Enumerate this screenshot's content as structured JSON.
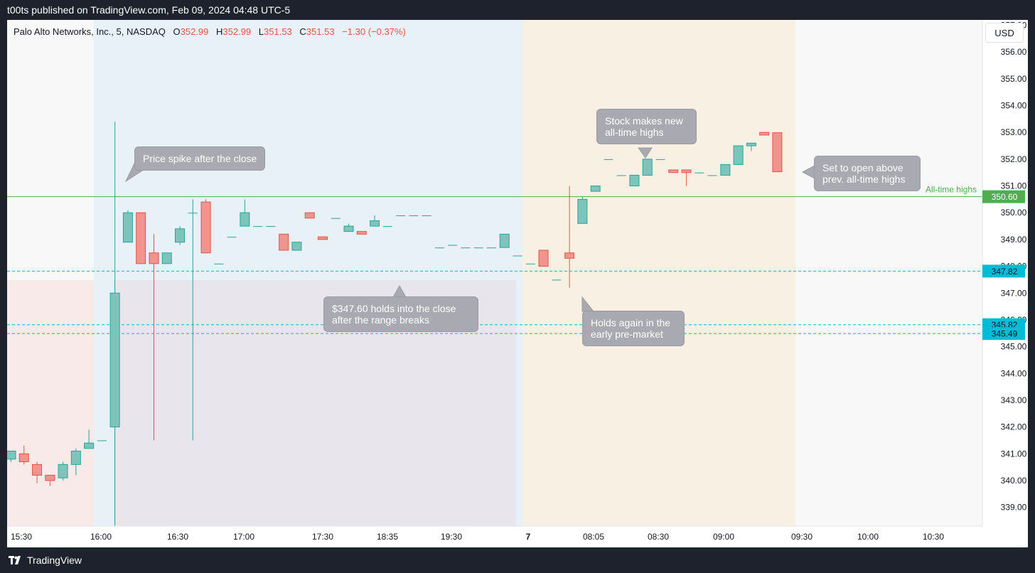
{
  "header": {
    "publisher_line": "t00ts published on TradingView.com, Feb 09, 2024 04:48 UTC-5"
  },
  "footer": {
    "brand": "TradingView"
  },
  "legend": {
    "symbol_line": "Palo Alto Networks, Inc., 5, NASDAQ",
    "o_label": "O",
    "o_value": "352.99",
    "h_label": "H",
    "h_value": "352.99",
    "l_label": "L",
    "l_value": "351.53",
    "c_label": "C",
    "c_value": "351.53",
    "change": "−1.30 (−0.37%)"
  },
  "currency_button": "USD",
  "colors": {
    "up": "#26a69a",
    "up_fill": "#7fc4bb",
    "down": "#e5534b",
    "down_fill": "#f1948f",
    "ath_line": "#4caf50",
    "support_line": "#00bcd4"
  },
  "annotations": [
    {
      "id": "spike",
      "lines": [
        "Price spike after the close"
      ]
    },
    {
      "id": "holds",
      "lines": [
        "$347.60 holds into the close",
        "after the range breaks"
      ]
    },
    {
      "id": "new-high",
      "lines": [
        "Stock makes new",
        "all-time highs"
      ]
    },
    {
      "id": "open-above",
      "lines": [
        "Set to open above",
        "prev. all-time highs"
      ]
    },
    {
      "id": "premarket",
      "lines": [
        "Holds again in the",
        "early pre-market"
      ]
    }
  ],
  "chart_data": {
    "type": "candlestick",
    "title": "Palo Alto Networks, Inc., 5, NASDAQ",
    "ylim": [
      338.3,
      357.2
    ],
    "y_ticks": [
      339,
      340,
      341,
      342,
      343,
      344,
      345,
      346,
      347,
      348,
      349,
      350,
      351,
      352,
      353,
      354,
      355,
      356,
      357
    ],
    "y_tick_labels": [
      "339.00",
      "340.00",
      "341.00",
      "342.00",
      "343.00",
      "344.00",
      "345.00",
      "346.00",
      "347.00",
      "348.00",
      "349.00",
      "350.00",
      "351.00",
      "352.00",
      "353.00",
      "354.00",
      "355.00",
      "356.00",
      "357.00"
    ],
    "x_tick_labels": [
      "15:30",
      "16:00",
      "16:30",
      "17:00",
      "17:30",
      "18:35",
      "19:30",
      "7",
      "08:05",
      "08:30",
      "09:00",
      "09:30",
      "10:00",
      "10:30"
    ],
    "horizontal_lines": [
      {
        "name": "All-time highs",
        "value": 350.6,
        "label": "350.60",
        "style": "solid"
      },
      {
        "value": 347.82,
        "label": "347.82",
        "style": "dashed"
      },
      {
        "value": 345.82,
        "label": "345.82",
        "style": "dashed"
      },
      {
        "value": 345.49,
        "label": "345.49",
        "style": "dashed"
      }
    ],
    "candles": [
      {
        "o": 340.8,
        "h": 341.1,
        "l": 340.7,
        "c": 341.1
      },
      {
        "o": 341.0,
        "h": 341.3,
        "l": 340.6,
        "c": 340.7
      },
      {
        "o": 340.6,
        "h": 340.7,
        "l": 339.9,
        "c": 340.2
      },
      {
        "o": 340.2,
        "h": 340.2,
        "l": 339.8,
        "c": 340.0
      },
      {
        "o": 340.1,
        "h": 340.7,
        "l": 340.0,
        "c": 340.6
      },
      {
        "o": 340.6,
        "h": 341.2,
        "l": 340.2,
        "c": 341.1
      },
      {
        "o": 341.2,
        "h": 341.9,
        "l": 341.2,
        "c": 341.4
      },
      {
        "o": 341.5,
        "h": 341.5,
        "l": 341.5,
        "c": 341.5
      },
      {
        "o": 342.0,
        "h": 353.4,
        "l": 338.2,
        "c": 347.0
      },
      {
        "o": 348.9,
        "h": 350.1,
        "l": 348.9,
        "c": 350.0
      },
      {
        "o": 350.0,
        "h": 350.0,
        "l": 348.1,
        "c": 348.1
      },
      {
        "o": 348.5,
        "h": 349.2,
        "l": 341.5,
        "c": 348.1
      },
      {
        "o": 348.1,
        "h": 348.5,
        "l": 348.1,
        "c": 348.5
      },
      {
        "o": 348.9,
        "h": 349.5,
        "l": 348.8,
        "c": 349.4
      },
      {
        "o": 350.0,
        "h": 350.5,
        "l": 341.5,
        "c": 350.0
      },
      {
        "o": 350.4,
        "h": 350.5,
        "l": 348.5,
        "c": 348.5
      },
      {
        "o": 348.1,
        "h": 348.1,
        "l": 348.1,
        "c": 348.1
      },
      {
        "o": 349.1,
        "h": 349.1,
        "l": 349.1,
        "c": 349.1
      },
      {
        "o": 349.5,
        "h": 350.5,
        "l": 349.5,
        "c": 350.0
      },
      {
        "o": 349.5,
        "h": 349.5,
        "l": 349.5,
        "c": 349.5
      },
      {
        "o": 349.5,
        "h": 349.5,
        "l": 349.5,
        "c": 349.5
      },
      {
        "o": 349.2,
        "h": 349.2,
        "l": 348.6,
        "c": 348.6
      },
      {
        "o": 348.6,
        "h": 348.9,
        "l": 348.6,
        "c": 348.9
      },
      {
        "o": 350.0,
        "h": 350.0,
        "l": 349.8,
        "c": 349.8
      },
      {
        "o": 349.1,
        "h": 349.1,
        "l": 349.0,
        "c": 349.0
      },
      {
        "o": 349.8,
        "h": 349.8,
        "l": 349.8,
        "c": 349.8
      },
      {
        "o": 349.3,
        "h": 349.6,
        "l": 349.3,
        "c": 349.5
      },
      {
        "o": 349.3,
        "h": 349.3,
        "l": 349.2,
        "c": 349.2
      },
      {
        "o": 349.5,
        "h": 349.9,
        "l": 349.5,
        "c": 349.7
      },
      {
        "o": 349.5,
        "h": 349.5,
        "l": 349.5,
        "c": 349.5
      },
      {
        "o": 349.9,
        "h": 349.9,
        "l": 349.9,
        "c": 349.9
      },
      {
        "o": 349.9,
        "h": 349.9,
        "l": 349.9,
        "c": 349.9
      },
      {
        "o": 349.9,
        "h": 349.9,
        "l": 349.9,
        "c": 349.9
      },
      {
        "o": 348.7,
        "h": 348.7,
        "l": 348.7,
        "c": 348.7
      },
      {
        "o": 348.8,
        "h": 348.8,
        "l": 348.8,
        "c": 348.8
      },
      {
        "o": 348.7,
        "h": 348.7,
        "l": 348.7,
        "c": 348.7
      },
      {
        "o": 348.7,
        "h": 348.7,
        "l": 348.7,
        "c": 348.7
      },
      {
        "o": 348.7,
        "h": 348.7,
        "l": 348.7,
        "c": 348.7
      },
      {
        "o": 348.7,
        "h": 349.2,
        "l": 348.7,
        "c": 349.2
      },
      {
        "o": 348.4,
        "h": 348.4,
        "l": 348.4,
        "c": 348.4
      },
      {
        "o": 348.1,
        "h": 348.1,
        "l": 348.1,
        "c": 348.1
      },
      {
        "o": 348.6,
        "h": 348.6,
        "l": 348.0,
        "c": 348.0
      },
      {
        "o": 347.5,
        "h": 347.5,
        "l": 347.5,
        "c": 347.5
      },
      {
        "o": 348.5,
        "h": 351.0,
        "l": 347.2,
        "c": 348.3
      },
      {
        "o": 349.6,
        "h": 350.6,
        "l": 349.6,
        "c": 350.5
      },
      {
        "o": 350.8,
        "h": 351.0,
        "l": 350.8,
        "c": 351.0
      },
      {
        "o": 352.0,
        "h": 352.0,
        "l": 352.0,
        "c": 352.0
      },
      {
        "o": 351.4,
        "h": 351.4,
        "l": 351.4,
        "c": 351.4
      },
      {
        "o": 351.0,
        "h": 351.4,
        "l": 351.0,
        "c": 351.4
      },
      {
        "o": 351.4,
        "h": 352.0,
        "l": 351.4,
        "c": 352.0
      },
      {
        "o": 352.0,
        "h": 352.0,
        "l": 352.0,
        "c": 352.0
      },
      {
        "o": 351.6,
        "h": 351.6,
        "l": 351.5,
        "c": 351.5
      },
      {
        "o": 351.6,
        "h": 351.6,
        "l": 351.0,
        "c": 351.5
      },
      {
        "o": 351.5,
        "h": 351.5,
        "l": 351.5,
        "c": 351.5
      },
      {
        "o": 351.4,
        "h": 351.4,
        "l": 351.4,
        "c": 351.4
      },
      {
        "o": 351.4,
        "h": 351.8,
        "l": 351.4,
        "c": 351.8
      },
      {
        "o": 351.8,
        "h": 352.5,
        "l": 351.8,
        "c": 352.5
      },
      {
        "o": 352.5,
        "h": 352.6,
        "l": 352.3,
        "c": 352.6
      },
      {
        "o": 353.0,
        "h": 353.0,
        "l": 352.9,
        "c": 352.9
      },
      {
        "o": 352.99,
        "h": 352.99,
        "l": 351.53,
        "c": 351.53
      }
    ]
  }
}
